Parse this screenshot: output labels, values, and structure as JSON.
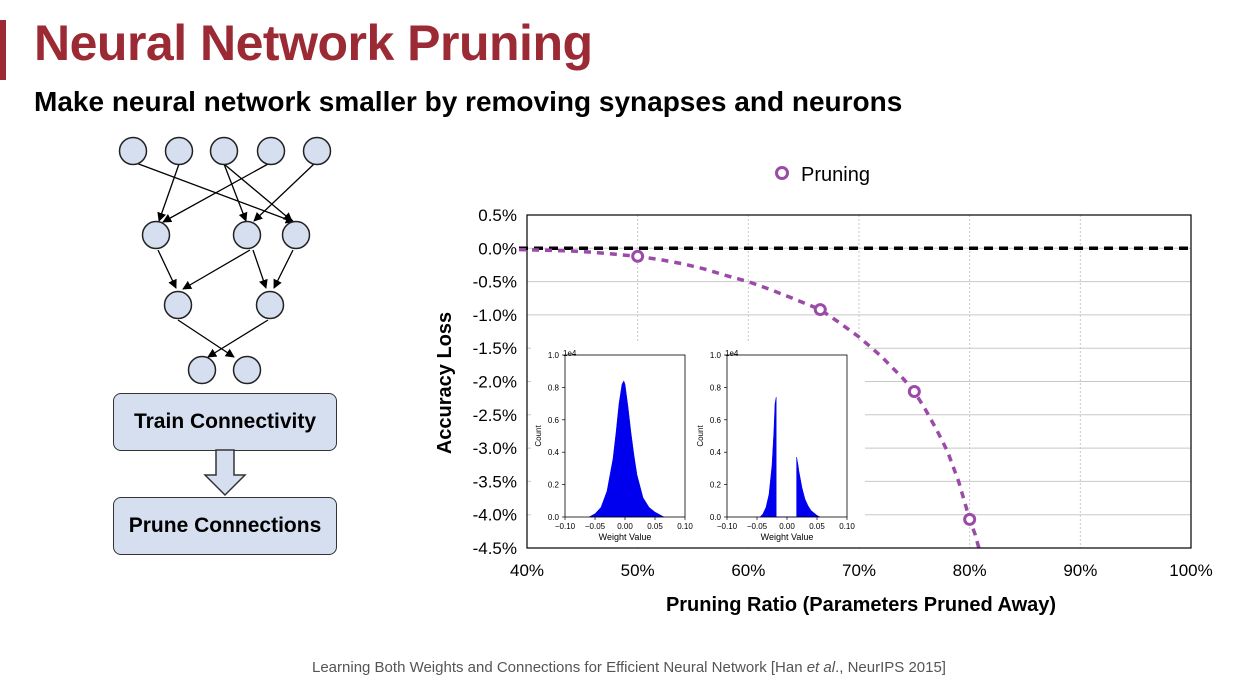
{
  "slide": {
    "title": "Neural Network Pruning",
    "subtitle": "Make neural network smaller by removing synapses and neurons",
    "footer_prefix": "Learning Both Weights and Connections for Efficient Neural Network [Han ",
    "footer_italic": "et al",
    "footer_suffix": "., NeurIPS 2015]",
    "accent_color": "#9b2a35",
    "icons": [
      "neural-network-diagram-icon",
      "down-arrow-icon"
    ]
  },
  "flow": {
    "train_label": "Train Connectivity",
    "prune_label": "Prune Connections"
  },
  "chart_data": [
    {
      "type": "line",
      "legend_entry": "Pruning",
      "legend_position": "top-center",
      "xlabel": "Pruning Ratio (Parameters Pruned Away)",
      "ylabel": "Accuracy Loss",
      "xlim": [
        40,
        100
      ],
      "ylim": [
        -4.5,
        0.5
      ],
      "x_tick_labels": [
        "40%",
        "50%",
        "60%",
        "70%",
        "80%",
        "90%",
        "100%"
      ],
      "y_tick_labels": [
        "0.5%",
        "0.0%",
        "-0.5%",
        "-1.0%",
        "-1.5%",
        "-2.0%",
        "-2.5%",
        "-3.0%",
        "-3.5%",
        "-4.0%",
        "-4.5%"
      ],
      "grid": true,
      "reference_line_y": 0.0,
      "series": [
        {
          "name": "Pruning",
          "color": "#9b4aa8",
          "x": [
            50,
            66.5,
            75,
            80
          ],
          "y": [
            -0.12,
            -0.92,
            -2.15,
            -4.07
          ],
          "curve_x": [
            40,
            42,
            44,
            46,
            48,
            50,
            52,
            54,
            56,
            58,
            60,
            62,
            64,
            66.5,
            68,
            70,
            72,
            74,
            75,
            76,
            77,
            78,
            79,
            80,
            80.5,
            81
          ],
          "curve_y": [
            -0.02,
            -0.03,
            -0.04,
            -0.06,
            -0.09,
            -0.12,
            -0.17,
            -0.23,
            -0.31,
            -0.41,
            -0.5,
            -0.62,
            -0.75,
            -0.92,
            -1.09,
            -1.33,
            -1.62,
            -1.96,
            -2.15,
            -2.42,
            -2.72,
            -3.05,
            -3.5,
            -4.07,
            -4.3,
            -4.6
          ]
        }
      ]
    },
    {
      "type": "area",
      "inset": "before-pruning",
      "xlabel": "Weight Value",
      "ylabel": "Count",
      "exponent_label": "1e4",
      "xlim": [
        -0.1,
        0.1
      ],
      "ylim": [
        0,
        1.0
      ],
      "x_tick_labels": [
        "−0.10",
        "−0.05",
        "0.00",
        "0.05",
        "0.10"
      ],
      "y_tick_labels": [
        "0.0",
        "0.2",
        "0.4",
        "0.6",
        "0.8",
        "1.0"
      ],
      "color": "#0000ee",
      "x": [
        -0.06,
        -0.05,
        -0.04,
        -0.03,
        -0.02,
        -0.015,
        -0.01,
        -0.005,
        -0.002,
        0.0,
        0.005,
        0.01,
        0.015,
        0.02,
        0.03,
        0.04,
        0.05,
        0.06,
        0.065
      ],
      "y": [
        0.0,
        0.02,
        0.06,
        0.16,
        0.36,
        0.52,
        0.7,
        0.82,
        0.84,
        0.82,
        0.68,
        0.52,
        0.38,
        0.26,
        0.12,
        0.06,
        0.03,
        0.01,
        0.0
      ]
    },
    {
      "type": "area",
      "inset": "after-pruning",
      "xlabel": "Weight Value",
      "ylabel": "Count",
      "exponent_label": "1e4",
      "xlim": [
        -0.1,
        0.1
      ],
      "ylim": [
        0,
        1.0
      ],
      "x_tick_labels": [
        "−0.10",
        "−0.05",
        "0.00",
        "0.05",
        "0.10"
      ],
      "y_tick_labels": [
        "0.0",
        "0.2",
        "0.4",
        "0.6",
        "0.8",
        "1.0"
      ],
      "color": "#0000ee",
      "x": [
        -0.045,
        -0.04,
        -0.035,
        -0.03,
        -0.025,
        -0.022,
        -0.02,
        -0.018,
        -0.018,
        0.016,
        0.016,
        0.018,
        0.02,
        0.025,
        0.03,
        0.035,
        0.04,
        0.05,
        0.055
      ],
      "y": [
        0.0,
        0.02,
        0.06,
        0.14,
        0.32,
        0.52,
        0.7,
        0.74,
        0.0,
        0.0,
        0.37,
        0.33,
        0.28,
        0.18,
        0.11,
        0.07,
        0.04,
        0.01,
        0.0
      ]
    }
  ]
}
